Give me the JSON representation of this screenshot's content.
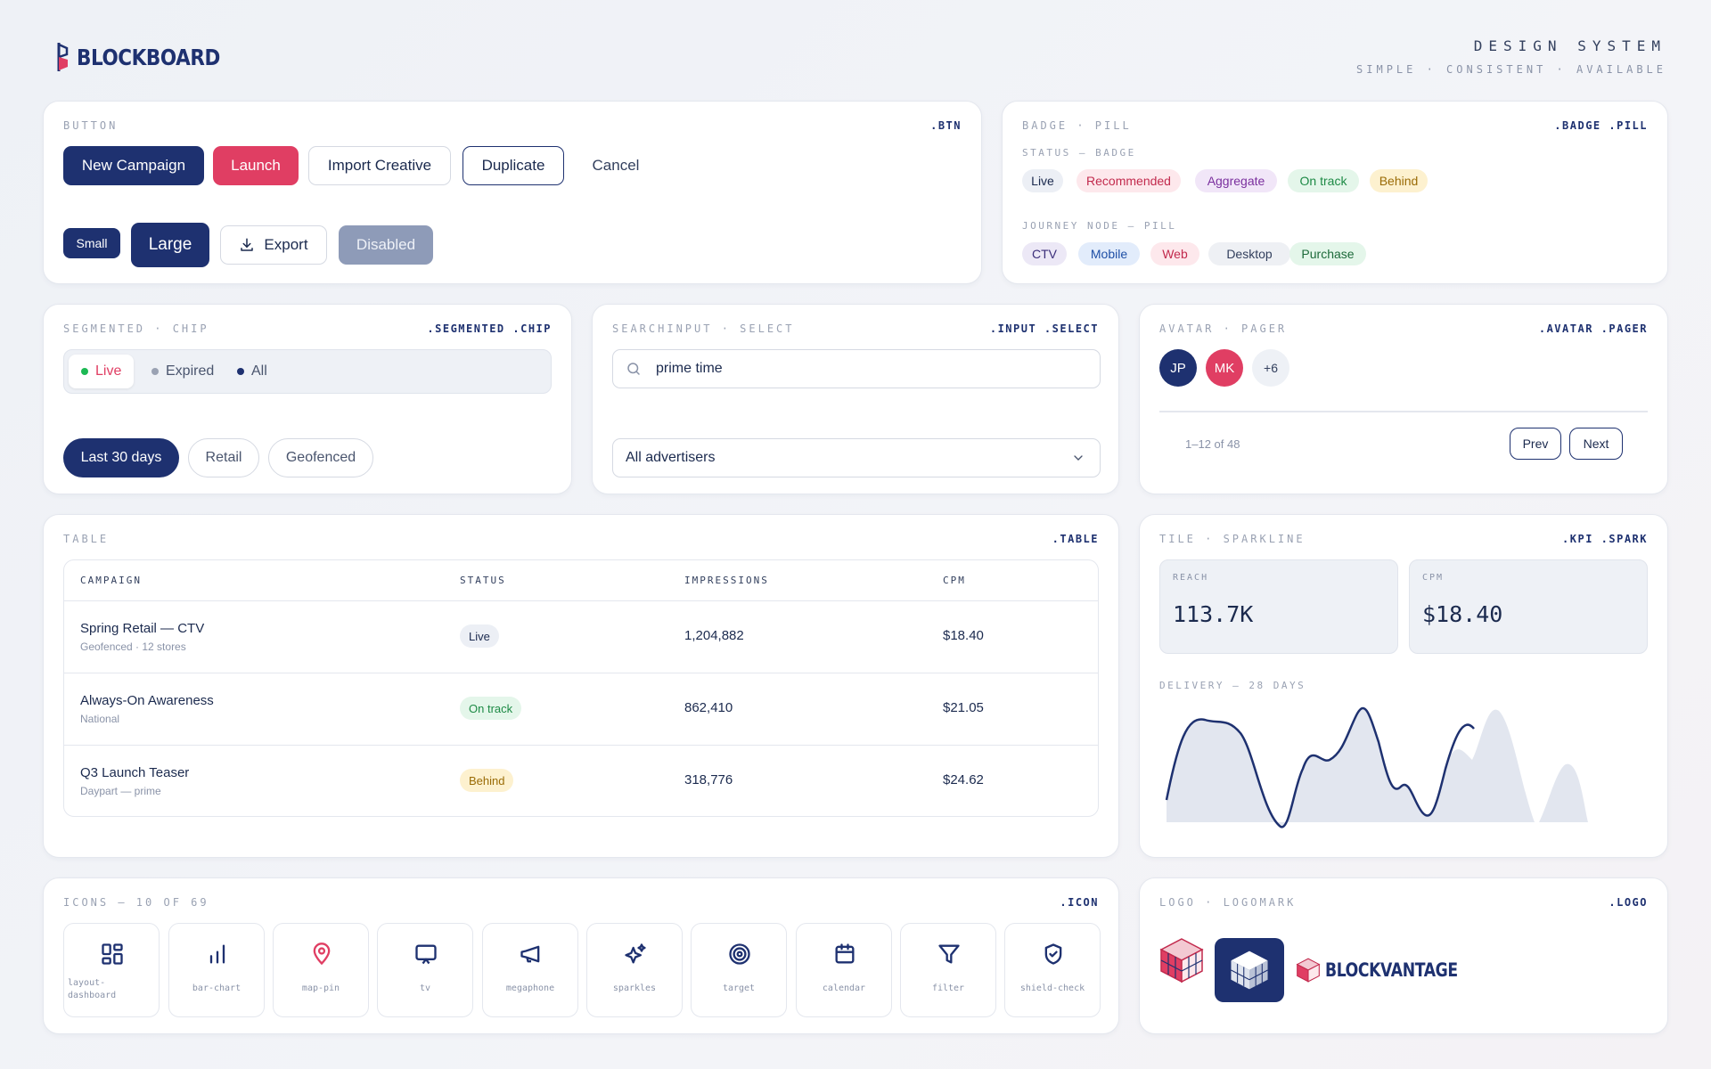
{
  "header": {
    "brand": "BLOCKBOARD",
    "title": "DESIGN SYSTEM",
    "tagline": "SIMPLE · CONSISTENT · AVAILABLE"
  },
  "button_card": {
    "label": "BUTTON",
    "code": ".BTN",
    "new_campaign": "New Campaign",
    "launch": "Launch",
    "import_creative": "Import Creative",
    "duplicate": "Duplicate",
    "cancel": "Cancel",
    "small": "Small",
    "large": "Large",
    "export": "Export",
    "disabled": "Disabled"
  },
  "badge_card": {
    "label": "BADGE · PILL",
    "code": ".BADGE .PILL",
    "status_label": "STATUS — BADGE",
    "status": [
      "Live",
      "Recommended",
      "Aggregate",
      "On track",
      "Behind"
    ],
    "journey_label": "JOURNEY NODE — PILL",
    "journey": [
      "CTV",
      "Mobile",
      "Web",
      "Desktop",
      "Purchase"
    ]
  },
  "segmented_card": {
    "label": "SEGMENTED · CHIP",
    "code": ".SEGMENTED .CHIP",
    "segments": [
      "Live",
      "Expired",
      "All"
    ],
    "chips": [
      "Last 30 days",
      "Retail",
      "Geofenced"
    ]
  },
  "search_card": {
    "label": "SEARCHINPUT · SELECT",
    "code": ".INPUT .SELECT",
    "search_value": "prime time",
    "select_value": "All advertisers"
  },
  "avatar_card": {
    "label": "AVATAR · PAGER",
    "code": ".AVATAR .PAGER",
    "avatars": [
      "JP",
      "MK",
      "+6"
    ],
    "range": "1–12 of 48",
    "prev": "Prev",
    "next": "Next"
  },
  "table_card": {
    "label": "TABLE",
    "code": ".TABLE",
    "headers": [
      "CAMPAIGN",
      "STATUS",
      "IMPRESSIONS",
      "CPM"
    ],
    "rows": [
      {
        "title": "Spring Retail — CTV",
        "sub": "Geofenced · 12 stores",
        "status": "Live",
        "impressions": "1,204,882",
        "cpm": "$18.40"
      },
      {
        "title": "Always-On Awareness",
        "sub": "National",
        "status": "On track",
        "impressions": "862,410",
        "cpm": "$21.05"
      },
      {
        "title": "Q3 Launch Teaser",
        "sub": "Daypart — prime",
        "status": "Behind",
        "impressions": "318,776",
        "cpm": "$24.62"
      }
    ]
  },
  "tile_card": {
    "label": "TILE · SPARKLINE",
    "code": ".KPI .SPARK",
    "reach_label": "REACH",
    "reach_value": "113.7K",
    "cpm_label": "CPM",
    "cpm_value": "$18.40",
    "delivery_label": "DELIVERY — 28 DAYS"
  },
  "icons_card": {
    "label": "ICONS — 10 OF 69",
    "code": ".ICON",
    "icons": [
      "layout-dashboard",
      "bar-chart",
      "map-pin",
      "tv",
      "megaphone",
      "sparkles",
      "target",
      "calendar",
      "filter",
      "shield-check"
    ]
  },
  "logo_card": {
    "label": "LOGO · LOGOMARK",
    "code": ".LOGO",
    "wordmark": "BLOCKVANTAGE"
  },
  "colors": {
    "navy": "#1e3170",
    "red": "#e03e63",
    "muted": "#8e9bb8"
  }
}
